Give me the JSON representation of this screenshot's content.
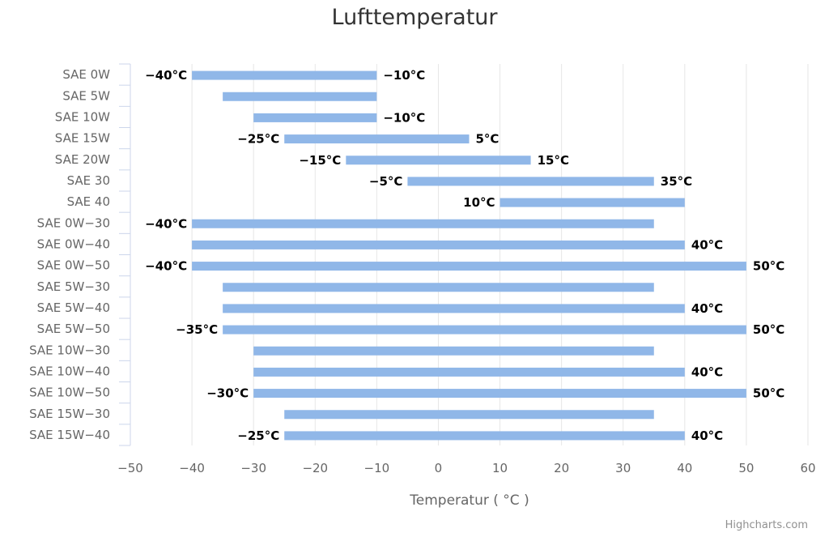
{
  "chart_data": {
    "type": "bar",
    "orientation": "horizontal",
    "subtype": "columnrange",
    "title": "Lufttemperatur",
    "xlabel": "Temperatur ( °C )",
    "ylabel": "",
    "xlim": [
      -50,
      60
    ],
    "x_ticks": [
      "−50",
      "−40",
      "−30",
      "−20",
      "−10",
      "0",
      "10",
      "20",
      "30",
      "40",
      "50",
      "60"
    ],
    "x_tick_values": [
      -50,
      -40,
      -30,
      -20,
      -10,
      0,
      10,
      20,
      30,
      40,
      50,
      60
    ],
    "grid": true,
    "bar_color": "#90b7e8",
    "categories": [
      "SAE 0W",
      "SAE 5W",
      "SAE 10W",
      "SAE 15W",
      "SAE 20W",
      "SAE 30",
      "SAE 40",
      "SAE 0W−30",
      "SAE 0W−40",
      "SAE 0W−50",
      "SAE 5W−30",
      "SAE 5W−40",
      "SAE 5W−50",
      "SAE 10W−30",
      "SAE 10W−40",
      "SAE 10W−50",
      "SAE 15W−30",
      "SAE 15W−40"
    ],
    "ranges": [
      {
        "low": -40,
        "high": -10,
        "low_label": "−40°C",
        "high_label": "−10°C"
      },
      {
        "low": -35,
        "high": -10,
        "low_label": "",
        "high_label": ""
      },
      {
        "low": -30,
        "high": -10,
        "low_label": "",
        "high_label": "−10°C"
      },
      {
        "low": -25,
        "high": 5,
        "low_label": "−25°C",
        "high_label": "5°C"
      },
      {
        "low": -15,
        "high": 15,
        "low_label": "−15°C",
        "high_label": "15°C"
      },
      {
        "low": -5,
        "high": 35,
        "low_label": "−5°C",
        "high_label": "35°C"
      },
      {
        "low": 10,
        "high": 40,
        "low_label": "10°C",
        "high_label": ""
      },
      {
        "low": -40,
        "high": 35,
        "low_label": "−40°C",
        "high_label": ""
      },
      {
        "low": -40,
        "high": 40,
        "low_label": "",
        "high_label": "40°C"
      },
      {
        "low": -40,
        "high": 50,
        "low_label": "−40°C",
        "high_label": "50°C"
      },
      {
        "low": -35,
        "high": 35,
        "low_label": "",
        "high_label": ""
      },
      {
        "low": -35,
        "high": 40,
        "low_label": "",
        "high_label": "40°C"
      },
      {
        "low": -35,
        "high": 50,
        "low_label": "−35°C",
        "high_label": "50°C"
      },
      {
        "low": -30,
        "high": 35,
        "low_label": "",
        "high_label": ""
      },
      {
        "low": -30,
        "high": 40,
        "low_label": "",
        "high_label": "40°C"
      },
      {
        "low": -30,
        "high": 50,
        "low_label": "−30°C",
        "high_label": "50°C"
      },
      {
        "low": -25,
        "high": 35,
        "low_label": "",
        "high_label": ""
      },
      {
        "low": -25,
        "high": 40,
        "low_label": "−25°C",
        "high_label": "40°C"
      }
    ],
    "credits": "Highcharts.com"
  }
}
